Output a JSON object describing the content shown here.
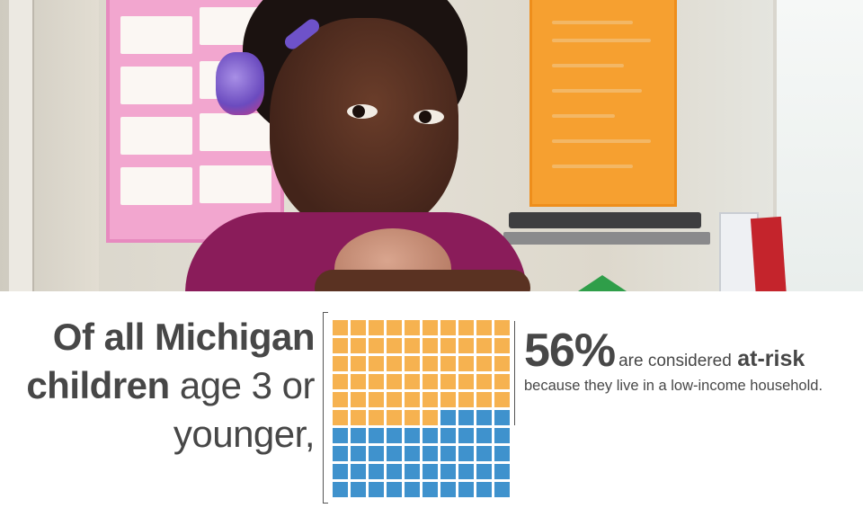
{
  "headline": {
    "line1_bold": "Of all Michigan",
    "line2_bold": "children",
    "line2_rest": " age 3 or",
    "line3": "younger,"
  },
  "stat": {
    "percent": "56%",
    "are_considered": "are considered",
    "at_risk": "at-risk",
    "because": "because they live in a low-income household."
  },
  "waffle": {
    "total": 100,
    "at_risk_count": 56,
    "colors": {
      "at_risk": "#f6b250",
      "not_at_risk": "#3f92cd",
      "text": "#474747"
    }
  }
}
